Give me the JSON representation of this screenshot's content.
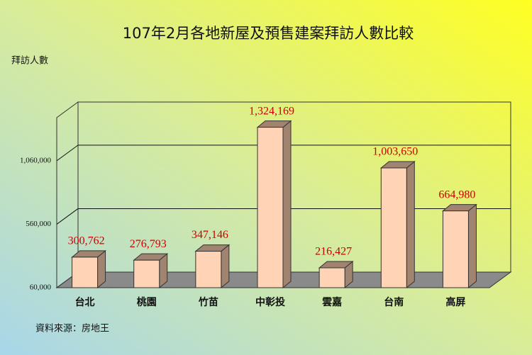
{
  "chart_data": {
    "type": "bar3d",
    "title": "107年2月各地新屋及預售建案拜訪人數比較",
    "y_label": "拜訪人數",
    "source": "資料來源：房地王",
    "categories": [
      "台北",
      "桃園",
      "竹苗",
      "中彰投",
      "雲嘉",
      "台南",
      "高屏"
    ],
    "values": [
      300762,
      276793,
      347146,
      1324169,
      216427,
      1003650,
      664980
    ],
    "value_labels": [
      "300,762",
      "276,793",
      "347,146",
      "1,324,169",
      "216,427",
      "1,003,650",
      "664,980"
    ],
    "color": "#ffd3b5",
    "side_color": "#a08470",
    "label_color": "#cc0000",
    "ylim": [
      60000,
      1400000
    ],
    "yticks": [
      {
        "value": 60000,
        "label": "60,000"
      },
      {
        "value": 560000,
        "label": "560,000"
      },
      {
        "value": 1060000,
        "label": "1,060,000"
      }
    ],
    "grid": true
  }
}
